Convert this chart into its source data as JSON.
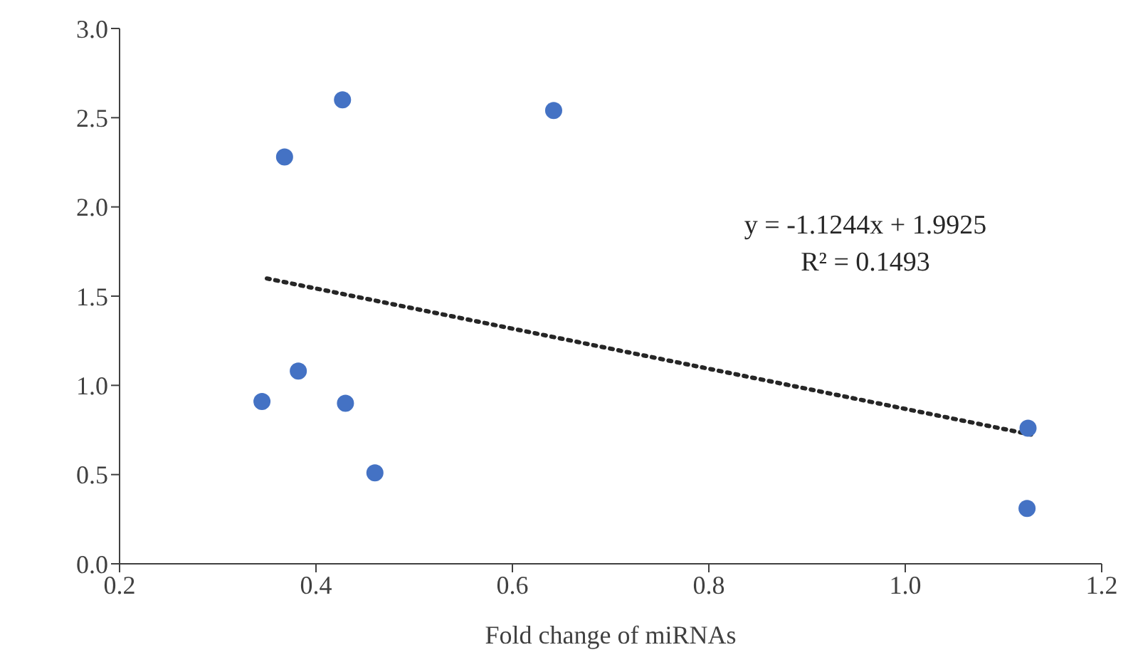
{
  "chart_data": {
    "type": "scatter",
    "xlabel": "Fold change of miRNAs",
    "xlim": [
      0.2,
      1.2
    ],
    "xticks": [
      {
        "value": 0.2,
        "label": "0.2"
      },
      {
        "value": 0.4,
        "label": "0.4"
      },
      {
        "value": 0.6,
        "label": "0.6"
      },
      {
        "value": 0.8,
        "label": "0.8"
      },
      {
        "value": 1.0,
        "label": "1.0"
      },
      {
        "value": 1.2,
        "label": "1.2"
      }
    ],
    "ylim": [
      0,
      3
    ],
    "yticks": [
      {
        "value": 0,
        "label": "0.0"
      },
      {
        "value": 0.5,
        "label": "0.5"
      },
      {
        "value": 1.0,
        "label": "1.0"
      },
      {
        "value": 1.5,
        "label": "1.5"
      },
      {
        "value": 2.0,
        "label": "2.0"
      },
      {
        "value": 2.5,
        "label": "2.5"
      },
      {
        "value": 3.0,
        "label": "3.0"
      }
    ],
    "grid": false,
    "legend": false,
    "marker": "circle",
    "series": [
      {
        "color": "#4472c4",
        "x": [
          0.427,
          0.642,
          0.368,
          0.382,
          0.345,
          0.43,
          0.46,
          1.124,
          1.125
        ],
        "values": [
          2.6,
          2.54,
          2.28,
          1.08,
          0.91,
          0.9,
          0.51,
          0.31,
          0.76
        ]
      },
      {
        "type": "line",
        "color": "#262626",
        "marker": "none",
        "line_style": "dotted",
        "x": [
          0.35,
          1.13
        ],
        "values": [
          1.599,
          0.722
        ]
      }
    ],
    "annotations": [
      "y = -1.1244x + 1.9925",
      "R² = 0.1493"
    ]
  }
}
